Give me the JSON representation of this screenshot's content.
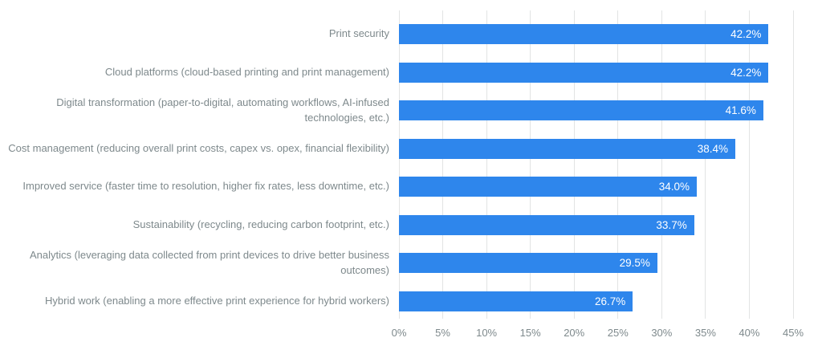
{
  "chart_data": {
    "type": "bar",
    "orientation": "horizontal",
    "title": "",
    "categories": [
      "Print security",
      "Cloud platforms (cloud-based printing and print management)",
      "Digital transformation (paper-to-digital, automating workflows, AI-infused technologies, etc.)",
      "Cost management (reducing overall print costs, capex vs. opex, financial flexibility)",
      "Improved service (faster time to resolution, higher fix rates, less downtime, etc.)",
      "Sustainability (recycling, reducing carbon footprint, etc.)",
      "Analytics (leveraging data collected from print devices to drive better business outcomes)",
      "Hybrid work (enabling a more effective print experience for hybrid workers)"
    ],
    "values": [
      42.2,
      42.2,
      41.6,
      38.4,
      34.0,
      33.7,
      29.5,
      26.7
    ],
    "value_labels": [
      "42.2%",
      "42.2%",
      "41.6%",
      "38.4%",
      "34.0%",
      "33.7%",
      "29.5%",
      "26.7%"
    ],
    "xlabel": "",
    "ylabel": "",
    "xlim": [
      0,
      45
    ],
    "xticks": [
      0,
      5,
      10,
      15,
      20,
      25,
      30,
      35,
      40,
      45
    ],
    "xtick_labels": [
      "0%",
      "5%",
      "10%",
      "15%",
      "20%",
      "25%",
      "30%",
      "35%",
      "40%",
      "45%"
    ],
    "grid": "vertical",
    "legend": "none",
    "colors": {
      "bar": "#2e86ec",
      "value_label": "#ffffff",
      "category_label": "#7e898c",
      "tick_label": "#7e898c",
      "gridline": "#e2e4e4",
      "background": "#ffffff"
    }
  }
}
